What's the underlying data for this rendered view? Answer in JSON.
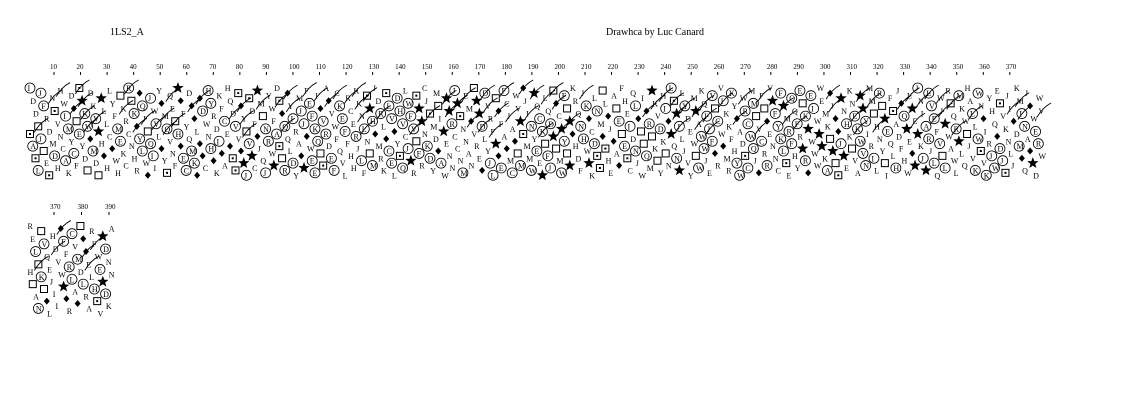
{
  "header": {
    "title": "1LS2_A",
    "credit": "Drawhca by Luc Canard"
  },
  "ruler": {
    "row1_ticks": [
      "10",
      "20",
      "30",
      "40",
      "50",
      "60",
      "70",
      "80",
      "90",
      "100",
      "110",
      "120",
      "130",
      "140",
      "150",
      "160",
      "170",
      "180",
      "190",
      "200",
      "210",
      "220",
      "230",
      "240",
      "250",
      "260",
      "270",
      "280",
      "290",
      "300",
      "310",
      "320",
      "330",
      "340",
      "350",
      "360",
      "370"
    ],
    "row2_ticks": [
      "370",
      "380",
      "390"
    ]
  },
  "legend_symbols": {
    "P": "star",
    "G": "diamond",
    "T": "square",
    "S": "dotted-square"
  },
  "colors": {
    "ink": "#000000",
    "background": "#ffffff"
  }
}
